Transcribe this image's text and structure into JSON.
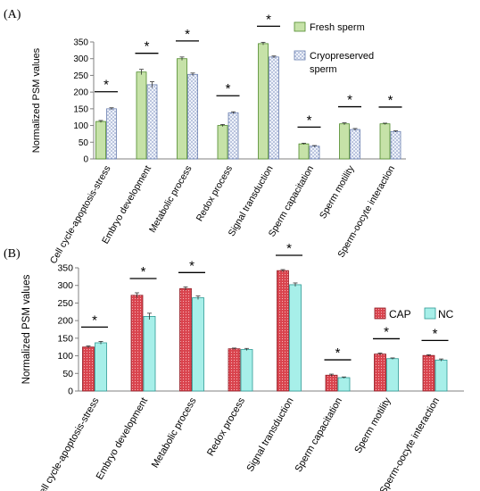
{
  "chart_data": [
    {
      "type": "bar",
      "panel_label": "(A)",
      "ylabel": "Normalized PSM values",
      "ylim": [
        0,
        350
      ],
      "yticks": [
        0,
        50,
        100,
        150,
        200,
        250,
        300,
        350
      ],
      "categories": [
        "Cell cycle-apoptosis-stress",
        "Embryo development",
        "Metabolic process",
        "Redox process",
        "Signal transduction",
        "Sperm capacitation",
        "Sperm motility",
        "Sperm-oocyte interaction"
      ],
      "series": [
        {
          "name": "Fresh sperm",
          "values": [
            112,
            260,
            300,
            100,
            345,
            45,
            105,
            105
          ],
          "errors": [
            3,
            8,
            5,
            3,
            4,
            2,
            3,
            2
          ]
        },
        {
          "name": "Cryopreserved sperm",
          "values": [
            150,
            222,
            253,
            138,
            305,
            38,
            88,
            82
          ],
          "errors": [
            3,
            9,
            4,
            3,
            3,
            2,
            3,
            2
          ]
        }
      ],
      "significance": [
        "*",
        "*",
        "*",
        "*",
        "*",
        "*",
        "*",
        "*"
      ],
      "legend_position": "top-right",
      "colors": {
        "s0_fill": "#c6e2a8",
        "s0_stroke": "#4f8a2a",
        "s1_fill": "#dfe7f5",
        "s1_stroke": "#6a7fb0"
      }
    },
    {
      "type": "bar",
      "panel_label": "(B)",
      "ylabel": "Normalized PSM values",
      "ylim": [
        0,
        350
      ],
      "yticks": [
        0,
        50,
        100,
        150,
        200,
        250,
        300,
        350
      ],
      "categories": [
        "Cell cycle-apoptosis-stress",
        "Embryo development",
        "Metabolic process",
        "Redox process",
        "Signal transduction",
        "Sperm capacitation",
        "Sperm motility",
        "Sperm-oocyte interaction"
      ],
      "series": [
        {
          "name": "CAP",
          "values": [
            125,
            272,
            291,
            120,
            342,
            45,
            105,
            101
          ],
          "errors": [
            3,
            7,
            5,
            2,
            3,
            3,
            3,
            2
          ]
        },
        {
          "name": "NC",
          "values": [
            137,
            212,
            265,
            118,
            302,
            38,
            92,
            88
          ],
          "errors": [
            4,
            9,
            5,
            3,
            5,
            2,
            2,
            3
          ]
        }
      ],
      "significance": [
        "*",
        "*",
        "*",
        "",
        "*",
        "*",
        "*",
        "*"
      ],
      "legend_position": "top-right",
      "colors": {
        "s0_fill": "#d63a45",
        "s0_stroke": "#8f1d26",
        "s1_fill": "#a7efe9",
        "s1_stroke": "#2e9a94"
      }
    }
  ]
}
